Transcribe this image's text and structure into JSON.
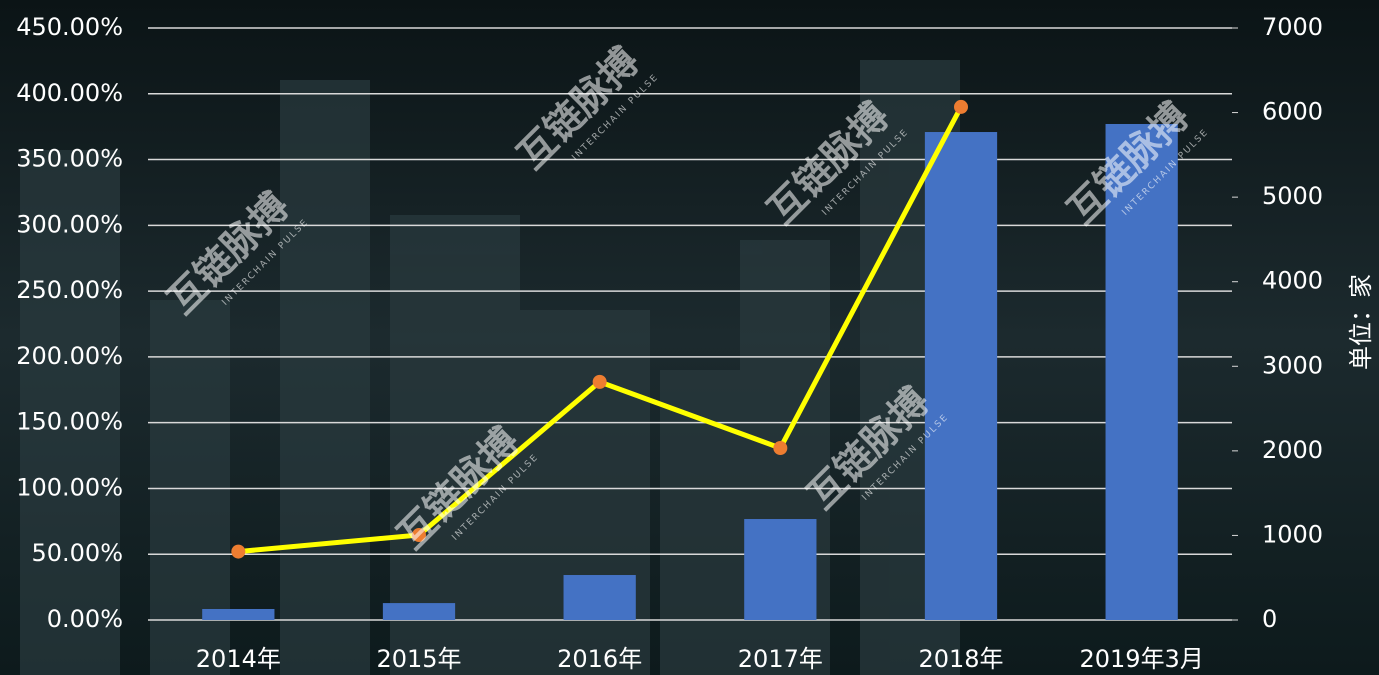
{
  "chart_data": {
    "type": "bar-line",
    "categories": [
      "2014年",
      "2015年",
      "2016年",
      "2017年",
      "2018年",
      "2019年3月"
    ],
    "series": [
      {
        "type": "bar",
        "axis": "y2",
        "color": "#4472c4",
        "values": [
          130,
          200,
          532,
          1194,
          5770,
          5865
        ]
      },
      {
        "type": "line",
        "axis": "y",
        "color": "#ffff00",
        "marker_color": "#ed7d31",
        "values": [
          52,
          64.6,
          181,
          130.7,
          390,
          null
        ]
      }
    ],
    "ylim": [
      0,
      450
    ],
    "yticks": [
      {
        "value": 0,
        "label": "0.00%"
      },
      {
        "value": 50,
        "label": "50.00%"
      },
      {
        "value": 100,
        "label": "100.00%"
      },
      {
        "value": 150,
        "label": "150.00%"
      },
      {
        "value": 200,
        "label": "200.00%"
      },
      {
        "value": 250,
        "label": "250.00%"
      },
      {
        "value": 300,
        "label": "300.00%"
      },
      {
        "value": 350,
        "label": "350.00%"
      },
      {
        "value": 400,
        "label": "400.00%"
      },
      {
        "value": 450,
        "label": "450.00%"
      }
    ],
    "y2lim": [
      0,
      7000
    ],
    "y2ticks": [
      0,
      1000,
      2000,
      3000,
      4000,
      5000,
      6000,
      7000
    ],
    "y2label": "单位：家",
    "grid": true,
    "watermark": {
      "text": "互链脉搏",
      "subtext": "INTERCHAIN PULSE"
    }
  }
}
